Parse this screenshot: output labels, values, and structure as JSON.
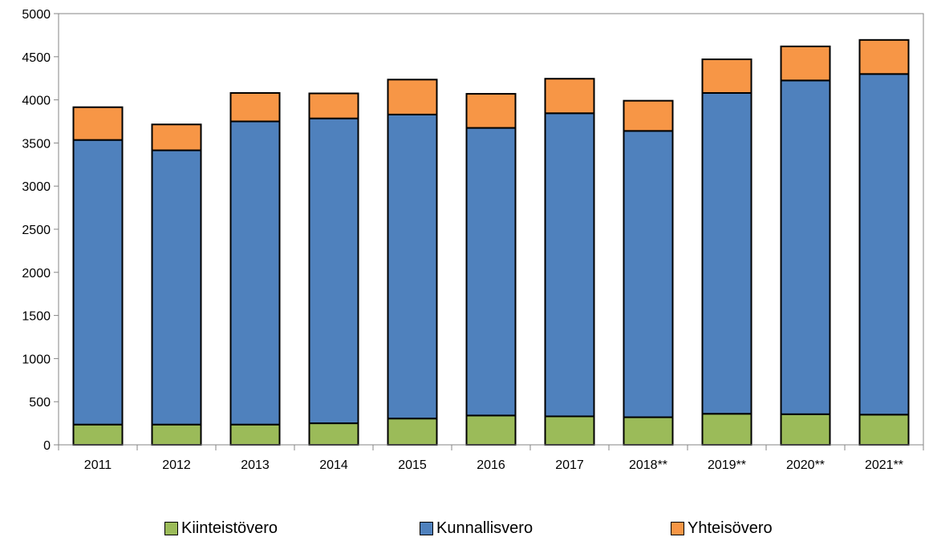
{
  "chart_data": {
    "type": "bar",
    "stacked": true,
    "categories": [
      "2011",
      "2012",
      "2013",
      "2014",
      "2015",
      "2016",
      "2017",
      "2018**",
      "2019**",
      "2020**",
      "2021**"
    ],
    "series": [
      {
        "name": "Kiinteistövero",
        "color": "#9bbb59",
        "values": [
          235,
          235,
          235,
          250,
          305,
          340,
          330,
          320,
          360,
          355,
          350
        ]
      },
      {
        "name": "Kunnallisvero",
        "color": "#4f81bd",
        "values": [
          3300,
          3180,
          3515,
          3535,
          3525,
          3335,
          3515,
          3320,
          3720,
          3870,
          3950
        ]
      },
      {
        "name": "Yhteisövero",
        "color": "#f79646",
        "values": [
          380,
          300,
          330,
          290,
          405,
          395,
          400,
          350,
          390,
          395,
          395
        ]
      }
    ],
    "ylim": [
      0,
      5000
    ],
    "yticks": [
      0,
      500,
      1000,
      1500,
      2000,
      2500,
      3000,
      3500,
      4000,
      4500,
      5000
    ],
    "legend_position": "bottom",
    "grid": false
  }
}
